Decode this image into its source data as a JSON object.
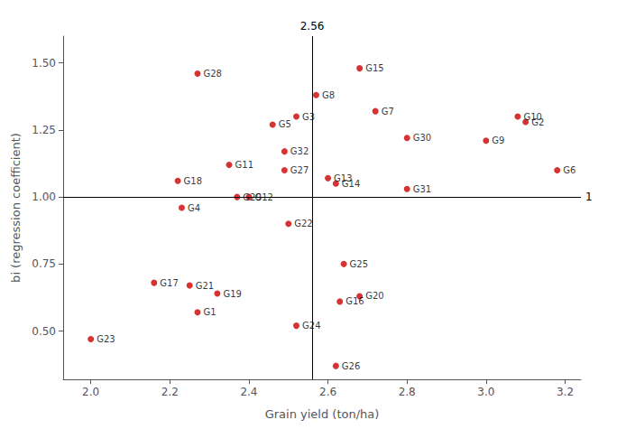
{
  "chart_data": {
    "type": "scatter",
    "xlabel": "Grain yield (ton/ha)",
    "ylabel": "bi (regression coefficient)",
    "labels": [
      "G1",
      "G2",
      "G3",
      "G4",
      "G5",
      "G6",
      "G7",
      "G8",
      "G9",
      "G10",
      "G11",
      "G12",
      "G13",
      "G14",
      "G15",
      "G16",
      "G17",
      "G18",
      "G19",
      "G20",
      "G21",
      "G22",
      "G23",
      "G24",
      "G25",
      "G26",
      "G27",
      "G28",
      "G29",
      "G30",
      "G31",
      "G32"
    ],
    "x": [
      2.27,
      3.1,
      2.52,
      2.23,
      2.46,
      3.18,
      2.72,
      2.57,
      3.0,
      3.08,
      2.35,
      2.4,
      2.6,
      2.62,
      2.68,
      2.63,
      2.16,
      2.22,
      2.32,
      2.68,
      2.25,
      2.5,
      2.0,
      2.52,
      2.64,
      2.62,
      2.49,
      2.27,
      2.37,
      2.8,
      2.8,
      2.49
    ],
    "values": [
      0.57,
      1.28,
      1.3,
      0.96,
      1.27,
      1.1,
      1.32,
      1.38,
      1.21,
      1.3,
      1.12,
      1.0,
      1.07,
      1.05,
      1.48,
      0.61,
      0.68,
      1.06,
      0.64,
      0.63,
      0.67,
      0.9,
      0.47,
      0.52,
      0.75,
      0.37,
      1.1,
      1.46,
      1.0,
      1.22,
      1.03,
      1.17
    ],
    "color": "#cc0000",
    "xlim": [
      1.93,
      3.24
    ],
    "ylim": [
      0.32,
      1.6
    ],
    "xticks": [
      {
        "value": 2.0,
        "label": "2.0"
      },
      2.2,
      2.4,
      2.6,
      2.8,
      {
        "value": 3.0,
        "label": "3.0"
      },
      3.2
    ],
    "yticks": [
      {
        "value": 0.5,
        "label": "0.50"
      },
      0.75,
      {
        "value": 1.0,
        "label": "1.00"
      },
      1.25,
      {
        "value": 1.5,
        "label": "1.50"
      }
    ],
    "annotations": [
      {
        "text": "2.56",
        "x": 2.56
      },
      {
        "text": "1",
        "y": 1.0
      }
    ],
    "grid": false
  }
}
